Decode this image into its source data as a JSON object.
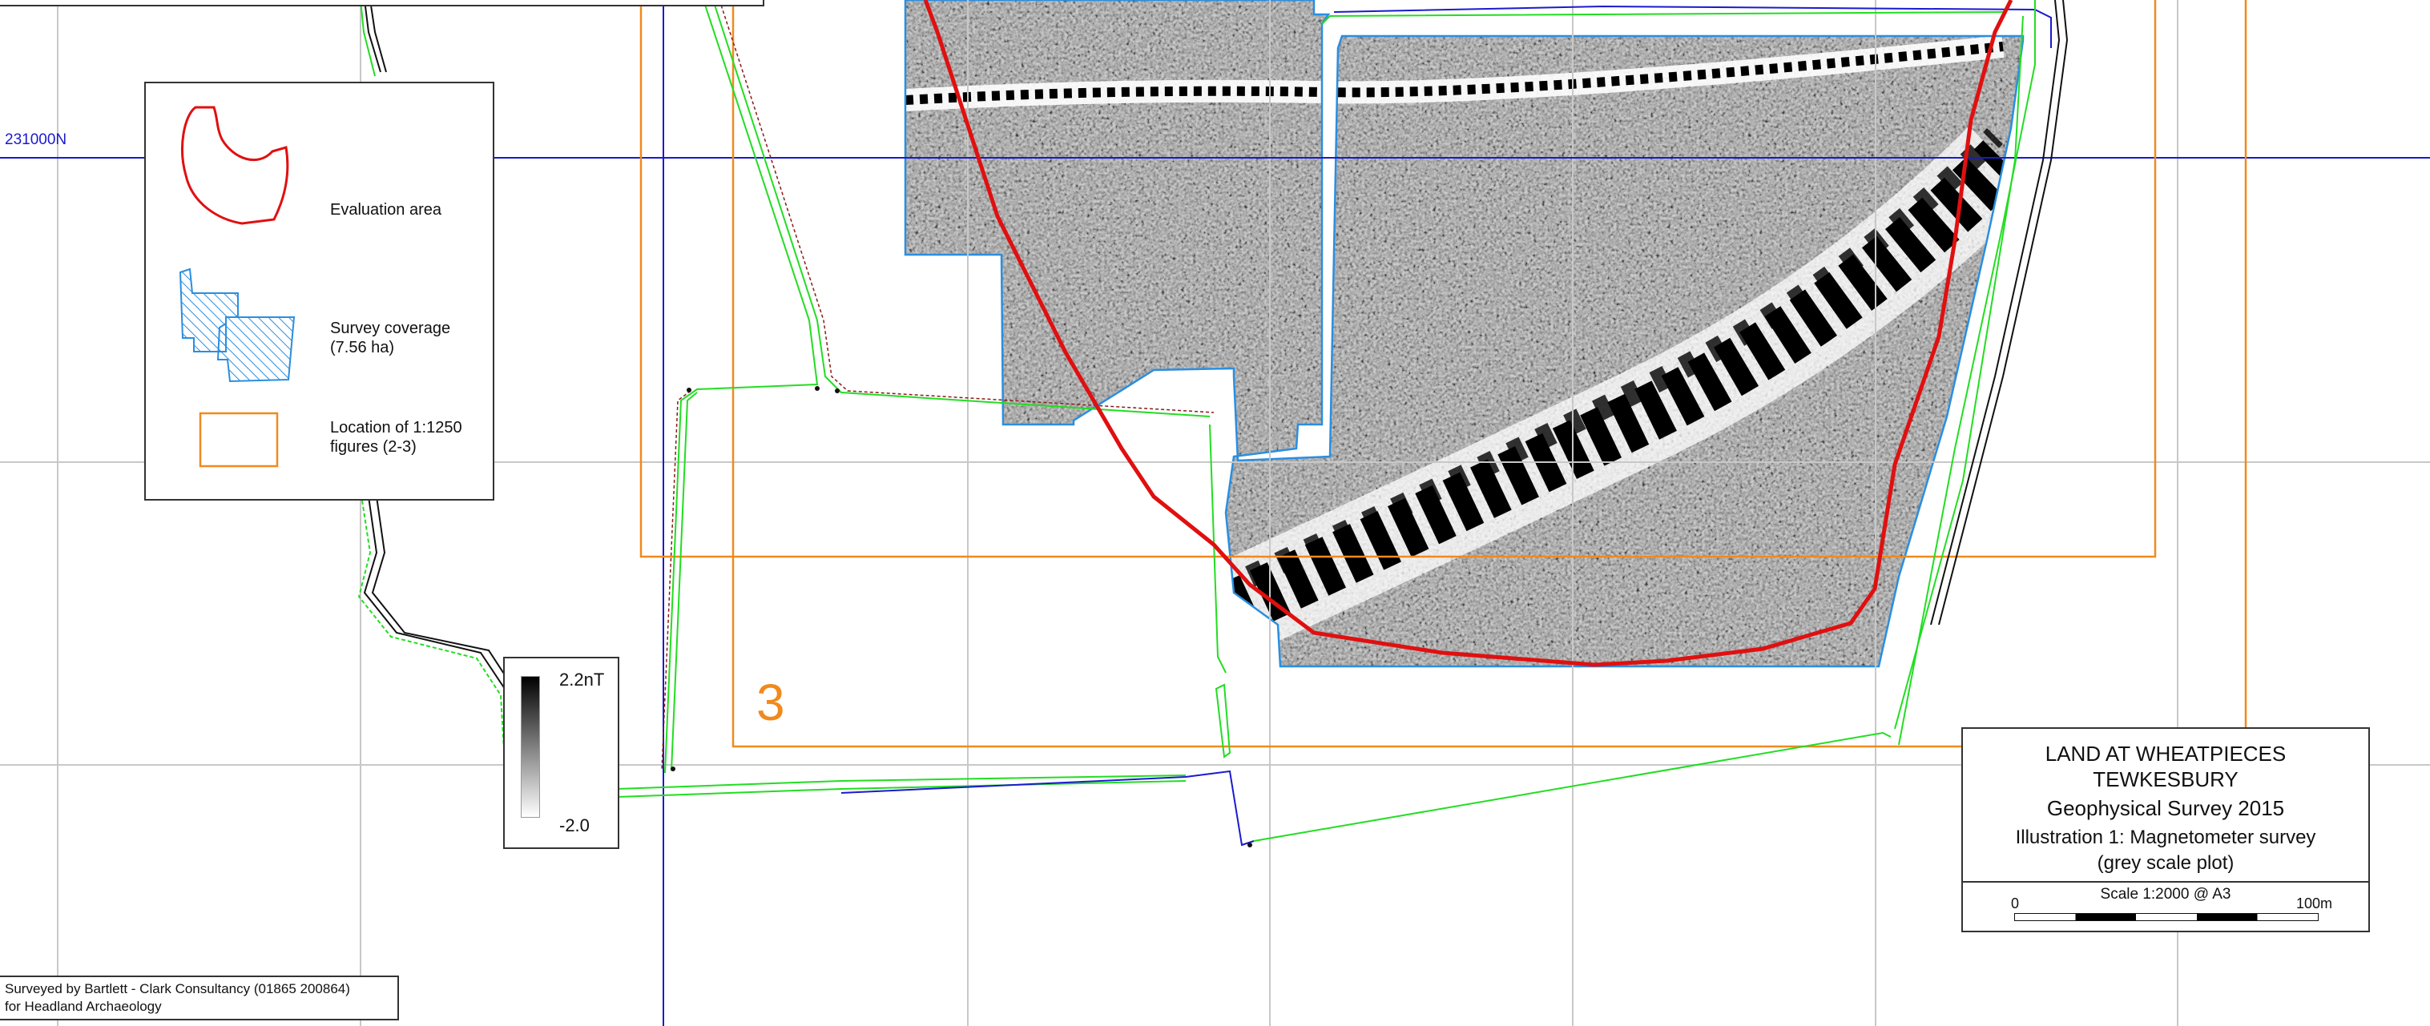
{
  "grid": {
    "northing_label": "231000N"
  },
  "figure_label": "3",
  "legend": {
    "items": [
      {
        "label_lines": [
          "Evaluation area"
        ]
      },
      {
        "label_lines": [
          "Survey coverage",
          "(7.56 ha)"
        ]
      },
      {
        "label_lines": [
          "Location of 1:1250",
          "figures (2-3)"
        ]
      }
    ]
  },
  "greyscale_key": {
    "max_label": "2.2nT",
    "min_label": "-2.0"
  },
  "title_block": {
    "site": "LAND AT WHEATPIECES",
    "town": "TEWKESBURY",
    "survey": "Geophysical Survey  2015",
    "illustration": "Illustration 1:  Magnetometer survey",
    "plot_type": "(grey scale plot)",
    "scale_text": "Scale 1:2000 @ A3",
    "scale_start": "0",
    "scale_end": "100m"
  },
  "credit": {
    "line1": "Surveyed by Bartlett - Clark Consultancy   (01865 200864)",
    "line2": "for  Headland Archaeology"
  },
  "colors": {
    "evaluation_area": "#e01010",
    "survey_coverage": "#2a8ee0",
    "figure_location": "#f08a1e",
    "grid_lines": "#c8c8c8",
    "grid_major": "#1a1ad0",
    "field_boundary_green": "#22dd22",
    "field_boundary_blue": "#1a1ad0",
    "road_lines": "#111111"
  }
}
